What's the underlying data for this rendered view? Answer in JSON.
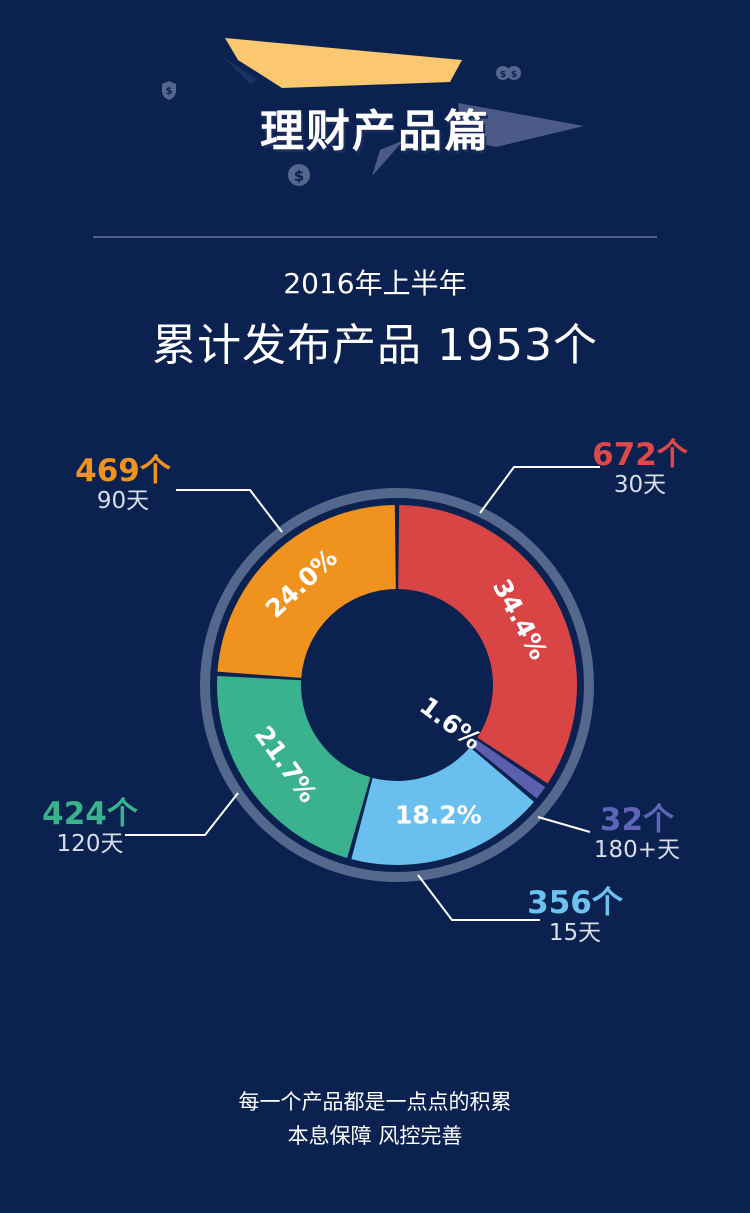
{
  "header": {
    "title": "理财产品篇"
  },
  "summary": {
    "period": "2016年上半年",
    "total_label": "累计发布产品  1953个"
  },
  "chart_data": {
    "type": "pie",
    "style": "donut",
    "total": 1953,
    "slices": [
      {
        "count_label": "672个",
        "days_label": "30天",
        "value": 672,
        "percent_label": "34.4%",
        "color": "#d94545"
      },
      {
        "count_label": "32个",
        "days_label": "180+天",
        "value": 32,
        "percent_label": "1.6%",
        "color": "#5b5fad"
      },
      {
        "count_label": "356个",
        "days_label": "15天",
        "value": 356,
        "percent_label": "18.2%",
        "color": "#69bfee"
      },
      {
        "count_label": "424个",
        "days_label": "120天",
        "value": 424,
        "percent_label": "21.7%",
        "color": "#3ab28e"
      },
      {
        "count_label": "469个",
        "days_label": "90天",
        "value": 469,
        "percent_label": "24.0%",
        "color": "#ef921e"
      }
    ],
    "ring_color": "#54688e"
  },
  "footer": {
    "line1": "每一个产品都是一点点的积累",
    "line2": "本息保障 风控完善"
  }
}
